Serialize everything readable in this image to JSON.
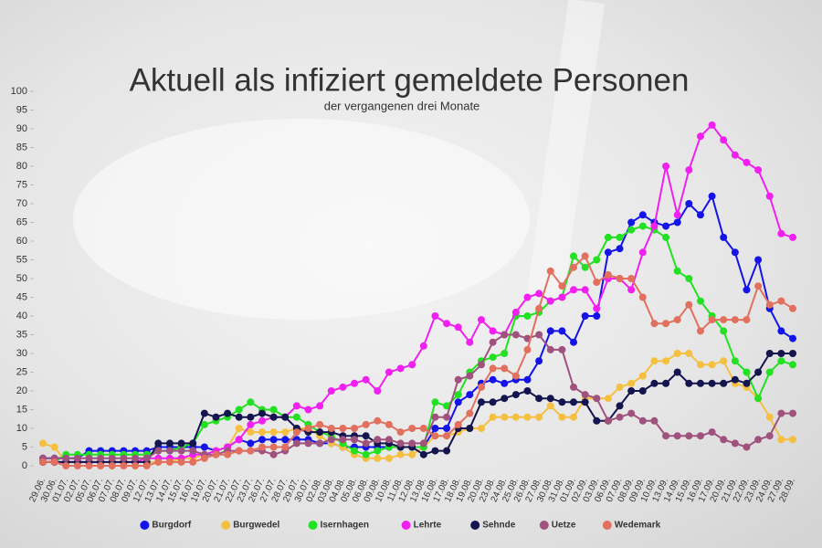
{
  "chart_data": {
    "type": "line",
    "title": "Aktuell als infiziert gemeldete Personen",
    "subtitle": "der vergangenen drei Monate",
    "categories": [
      "29.06.",
      "30.06.",
      "01.07.",
      "02.07.",
      "05.07.",
      "06.07.",
      "07.07.",
      "08.07.",
      "09.07.",
      "12.07.",
      "13.07.",
      "14.07.",
      "15.07.",
      "16.07.",
      "19.07.",
      "20.07.",
      "21.07.",
      "22.07.",
      "23.07.",
      "26.07.",
      "27.07.",
      "28.07.",
      "29.07.",
      "30.07.",
      "02.08.",
      "03.08.",
      "04.08.",
      "05.08.",
      "06.08.",
      "09.08.",
      "10.08.",
      "11.08.",
      "12.08.",
      "13.08.",
      "16.08.",
      "17.08.",
      "18.08.",
      "19.08.",
      "20.08.",
      "23.08.",
      "24.08.",
      "25.08.",
      "26.08.",
      "27.08.",
      "30.08.",
      "31.08.",
      "01.09.",
      "02.09.",
      "03.09.",
      "06.09.",
      "07.09.",
      "08.09.",
      "09.09.",
      "10.09.",
      "13.09.",
      "14.09.",
      "15.09.",
      "16.09.",
      "17.09.",
      "20.09.",
      "21.09.",
      "22.09.",
      "23.09.",
      "24.09.",
      "27.09.",
      "28.09."
    ],
    "series": [
      {
        "name": "Burgdorf",
        "color": "#1414e6",
        "values": [
          2,
          2,
          2,
          2,
          4,
          4,
          4,
          4,
          4,
          4,
          5,
          5,
          5,
          5,
          5,
          4,
          5,
          7,
          6,
          7,
          7,
          7,
          7,
          7,
          6,
          6,
          5,
          5,
          5,
          5,
          5,
          5,
          5,
          5,
          10,
          10,
          17,
          19,
          22,
          23,
          22,
          23,
          23,
          28,
          36,
          36,
          33,
          40,
          40,
          57,
          58,
          65,
          67,
          65,
          64,
          65,
          70,
          67,
          72,
          61,
          57,
          47,
          55,
          42,
          36,
          34
        ]
      },
      {
        "name": "Burgwedel",
        "color": "#f5c040",
        "values": [
          6,
          5,
          1,
          1,
          1,
          1,
          1,
          1,
          1,
          1,
          1,
          1,
          2,
          2,
          3,
          4,
          5,
          10,
          9,
          9,
          9,
          9,
          10,
          10,
          8,
          6,
          5,
          3,
          2,
          2,
          2,
          3,
          3,
          5,
          8,
          8,
          9,
          10,
          10,
          13,
          13,
          13,
          13,
          13,
          16,
          13,
          13,
          18,
          18,
          18,
          21,
          22,
          24,
          28,
          28,
          30,
          30,
          27,
          27,
          28,
          22,
          21,
          18,
          13,
          7,
          7
        ]
      },
      {
        "name": "Isernhagen",
        "color": "#22e022",
        "values": [
          1,
          1,
          3,
          3,
          3,
          3,
          3,
          3,
          3,
          3,
          4,
          4,
          5,
          6,
          11,
          12,
          13,
          15,
          17,
          15,
          15,
          13,
          13,
          11,
          9,
          8,
          6,
          4,
          3,
          4,
          5,
          5,
          5,
          5,
          17,
          16,
          19,
          25,
          28,
          29,
          30,
          40,
          40,
          41,
          44,
          45,
          56,
          53,
          55,
          61,
          61,
          63,
          64,
          63,
          61,
          52,
          50,
          44,
          40,
          36,
          28,
          25,
          18,
          25,
          28,
          27
        ]
      },
      {
        "name": "Lehrte",
        "color": "#f020f0",
        "values": [
          1,
          1,
          1,
          1,
          1,
          1,
          1,
          1,
          1,
          2,
          2,
          2,
          2,
          3,
          3,
          4,
          5,
          7,
          11,
          12,
          13,
          13,
          16,
          15,
          16,
          20,
          21,
          22,
          23,
          20,
          25,
          26,
          27,
          32,
          40,
          38,
          37,
          33,
          39,
          36,
          35,
          41,
          45,
          46,
          44,
          45,
          47,
          47,
          42,
          50,
          50,
          47,
          57,
          64,
          80,
          67,
          79,
          88,
          91,
          87,
          83,
          81,
          79,
          72,
          62,
          61
        ]
      },
      {
        "name": "Sehnde",
        "color": "#14144e",
        "values": [
          1,
          1,
          1,
          1,
          1,
          1,
          1,
          1,
          1,
          1,
          6,
          6,
          6,
          6,
          14,
          13,
          14,
          13,
          13,
          14,
          13,
          13,
          10,
          9,
          9,
          9,
          8,
          8,
          8,
          6,
          6,
          5,
          5,
          3,
          4,
          4,
          10,
          10,
          17,
          17,
          18,
          19,
          20,
          18,
          18,
          17,
          17,
          17,
          12,
          12,
          16,
          20,
          20,
          22,
          22,
          25,
          22,
          22,
          22,
          22,
          23,
          22,
          25,
          30,
          30,
          30
        ]
      },
      {
        "name": "Uetze",
        "color": "#a0527e",
        "values": [
          2,
          2,
          2,
          2,
          2,
          2,
          2,
          2,
          2,
          2,
          4,
          4,
          4,
          4,
          3,
          3,
          4,
          4,
          4,
          4,
          3,
          4,
          6,
          6,
          6,
          7,
          7,
          7,
          6,
          7,
          7,
          6,
          6,
          6,
          13,
          13,
          23,
          24,
          27,
          33,
          35,
          35,
          34,
          35,
          31,
          31,
          21,
          19,
          18,
          12,
          13,
          14,
          12,
          12,
          8,
          8,
          8,
          8,
          9,
          7,
          6,
          5,
          7,
          8,
          14,
          14
        ]
      },
      {
        "name": "Wedemark",
        "color": "#e2705e",
        "values": [
          1,
          1,
          0,
          0,
          0,
          0,
          0,
          0,
          0,
          0,
          1,
          1,
          1,
          1,
          2,
          3,
          3,
          4,
          4,
          5,
          5,
          5,
          9,
          10,
          11,
          10,
          10,
          10,
          11,
          12,
          11,
          9,
          10,
          10,
          8,
          8,
          11,
          14,
          21,
          26,
          26,
          24,
          31,
          42,
          52,
          48,
          53,
          56,
          49,
          51,
          50,
          50,
          45,
          38,
          38,
          39,
          43,
          36,
          39,
          39,
          39,
          39,
          48,
          43,
          44,
          42
        ]
      }
    ],
    "ylim": [
      0,
      100
    ],
    "yticks": [
      0,
      5,
      10,
      15,
      20,
      25,
      30,
      35,
      40,
      45,
      50,
      55,
      60,
      65,
      70,
      75,
      80,
      85,
      90,
      95,
      100
    ],
    "legend": "bottom"
  }
}
